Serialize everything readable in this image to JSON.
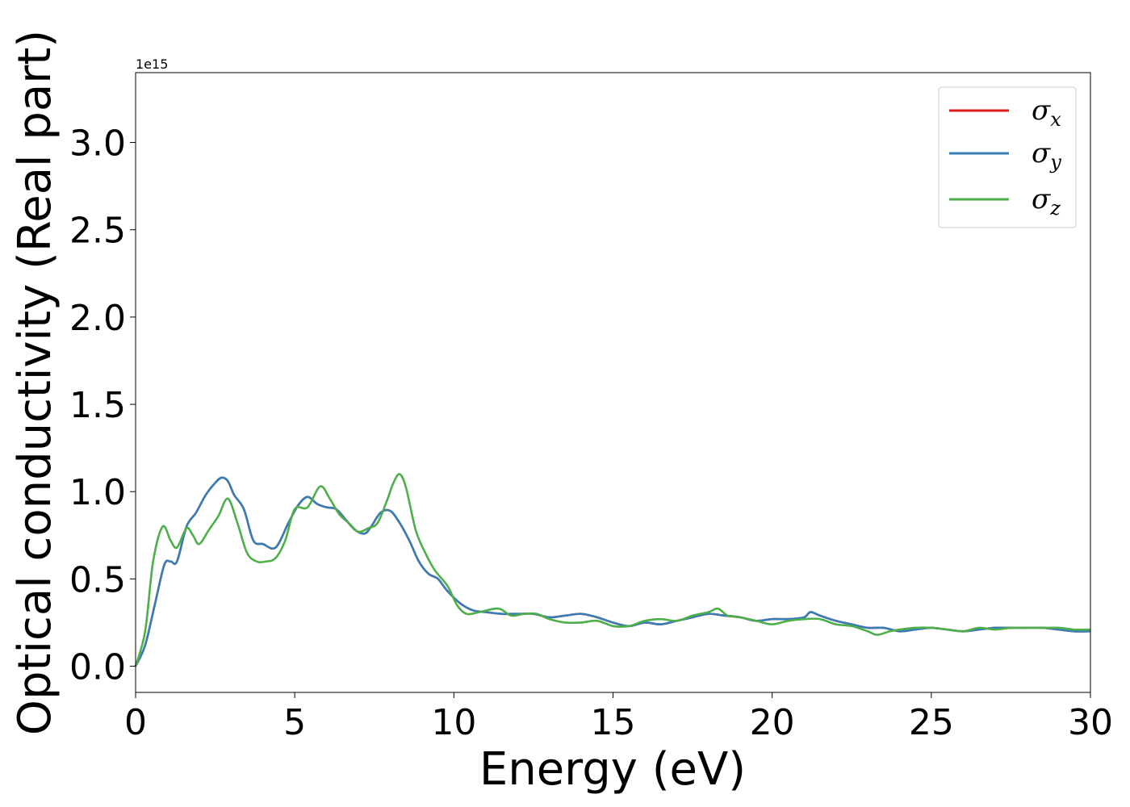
{
  "chart_data": {
    "type": "line",
    "xlabel": "Energy (eV)",
    "ylabel": "Optical conductivity (Real part)",
    "y_offset_label": "1e15",
    "xlim": [
      0,
      30
    ],
    "ylim": [
      -0.15,
      3.4
    ],
    "x_ticks": [
      0,
      5,
      10,
      15,
      20,
      25,
      30
    ],
    "x_tick_labels": [
      "0",
      "5",
      "10",
      "15",
      "20",
      "25",
      "30"
    ],
    "y_ticks": [
      0.0,
      0.5,
      1.0,
      1.5,
      2.0,
      2.5,
      3.0
    ],
    "y_tick_labels": [
      "0.0",
      "0.5",
      "1.0",
      "1.5",
      "2.0",
      "2.5",
      "3.0"
    ],
    "grid": false,
    "legend_position": "top-right",
    "colors": {
      "sigma_x": "#e41a1c",
      "sigma_y": "#377eb8",
      "sigma_z": "#4daf4a"
    },
    "series": [
      {
        "name": "σx",
        "legend_symbol": "σ",
        "legend_sub": "x",
        "x": [
          0,
          0.3,
          0.6,
          0.9,
          1.1,
          1.3,
          1.6,
          1.9,
          2.2,
          2.5,
          2.7,
          2.9,
          3.1,
          3.4,
          3.7,
          4.0,
          4.4,
          4.8,
          5.1,
          5.4,
          5.7,
          6.0,
          6.3,
          6.6,
          6.9,
          7.2,
          7.4,
          7.7,
          8.0,
          8.3,
          8.6,
          8.9,
          9.2,
          9.5,
          9.8,
          10.2,
          10.6,
          11.0,
          11.5,
          12.0,
          12.5,
          13.0,
          13.5,
          14.0,
          14.5,
          15.0,
          15.5,
          16.0,
          16.5,
          17.0,
          17.5,
          18.0,
          18.5,
          19.0,
          19.5,
          20.0,
          20.5,
          21.0,
          21.2,
          21.5,
          22.0,
          22.5,
          23.0,
          23.5,
          24.0,
          24.5,
          25.0,
          25.5,
          26.0,
          26.5,
          27.0,
          27.5,
          28.0,
          28.5,
          29.0,
          29.5,
          30.0
        ],
        "values": [
          0.0,
          0.12,
          0.35,
          0.58,
          0.6,
          0.6,
          0.8,
          0.88,
          0.98,
          1.05,
          1.08,
          1.06,
          0.98,
          0.9,
          0.72,
          0.7,
          0.68,
          0.82,
          0.92,
          0.97,
          0.93,
          0.91,
          0.9,
          0.84,
          0.78,
          0.76,
          0.8,
          0.88,
          0.89,
          0.82,
          0.72,
          0.6,
          0.53,
          0.5,
          0.43,
          0.36,
          0.32,
          0.31,
          0.3,
          0.3,
          0.3,
          0.28,
          0.29,
          0.3,
          0.28,
          0.25,
          0.23,
          0.25,
          0.24,
          0.26,
          0.28,
          0.3,
          0.29,
          0.28,
          0.26,
          0.27,
          0.27,
          0.28,
          0.31,
          0.29,
          0.26,
          0.24,
          0.22,
          0.22,
          0.2,
          0.21,
          0.22,
          0.21,
          0.2,
          0.21,
          0.22,
          0.22,
          0.22,
          0.22,
          0.21,
          0.2,
          0.2
        ]
      },
      {
        "name": "σy",
        "legend_symbol": "σ",
        "legend_sub": "y",
        "x": [
          0,
          0.3,
          0.6,
          0.9,
          1.1,
          1.3,
          1.6,
          1.9,
          2.2,
          2.5,
          2.7,
          2.9,
          3.1,
          3.4,
          3.7,
          4.0,
          4.4,
          4.8,
          5.1,
          5.4,
          5.7,
          6.0,
          6.3,
          6.6,
          6.9,
          7.2,
          7.4,
          7.7,
          8.0,
          8.3,
          8.6,
          8.9,
          9.2,
          9.5,
          9.8,
          10.2,
          10.6,
          11.0,
          11.5,
          12.0,
          12.5,
          13.0,
          13.5,
          14.0,
          14.5,
          15.0,
          15.5,
          16.0,
          16.5,
          17.0,
          17.5,
          18.0,
          18.5,
          19.0,
          19.5,
          20.0,
          20.5,
          21.0,
          21.2,
          21.5,
          22.0,
          22.5,
          23.0,
          23.5,
          24.0,
          24.5,
          25.0,
          25.5,
          26.0,
          26.5,
          27.0,
          27.5,
          28.0,
          28.5,
          29.0,
          29.5,
          30.0
        ],
        "values": [
          0.0,
          0.12,
          0.35,
          0.58,
          0.6,
          0.6,
          0.8,
          0.88,
          0.98,
          1.05,
          1.08,
          1.06,
          0.98,
          0.9,
          0.72,
          0.7,
          0.68,
          0.82,
          0.92,
          0.97,
          0.93,
          0.91,
          0.9,
          0.84,
          0.78,
          0.76,
          0.8,
          0.88,
          0.89,
          0.82,
          0.72,
          0.6,
          0.53,
          0.5,
          0.43,
          0.36,
          0.32,
          0.31,
          0.3,
          0.3,
          0.3,
          0.28,
          0.29,
          0.3,
          0.28,
          0.25,
          0.23,
          0.25,
          0.24,
          0.26,
          0.28,
          0.3,
          0.29,
          0.28,
          0.26,
          0.27,
          0.27,
          0.28,
          0.31,
          0.29,
          0.26,
          0.24,
          0.22,
          0.22,
          0.2,
          0.21,
          0.22,
          0.21,
          0.2,
          0.21,
          0.22,
          0.22,
          0.22,
          0.22,
          0.21,
          0.2,
          0.2
        ]
      },
      {
        "name": "σz",
        "legend_symbol": "σ",
        "legend_sub": "z",
        "x": [
          0,
          0.3,
          0.55,
          0.85,
          1.1,
          1.3,
          1.6,
          1.8,
          2.0,
          2.3,
          2.6,
          2.9,
          3.2,
          3.5,
          3.8,
          4.1,
          4.4,
          4.7,
          5.0,
          5.4,
          5.8,
          6.1,
          6.4,
          6.7,
          7.0,
          7.3,
          7.6,
          7.9,
          8.1,
          8.3,
          8.5,
          8.8,
          9.1,
          9.4,
          9.8,
          10.1,
          10.4,
          10.8,
          11.4,
          11.8,
          12.2,
          12.6,
          13.0,
          13.5,
          14.0,
          14.5,
          15.0,
          15.5,
          16.0,
          16.5,
          17.0,
          17.5,
          18.0,
          18.3,
          18.6,
          19.0,
          19.5,
          20.0,
          20.5,
          21.0,
          21.5,
          22.0,
          22.5,
          23.0,
          23.3,
          23.7,
          24.0,
          24.5,
          25.0,
          25.5,
          26.0,
          26.5,
          27.0,
          27.5,
          28.0,
          28.5,
          29.0,
          29.5,
          30.0
        ],
        "values": [
          0.0,
          0.2,
          0.6,
          0.8,
          0.72,
          0.68,
          0.79,
          0.75,
          0.7,
          0.78,
          0.86,
          0.96,
          0.82,
          0.65,
          0.6,
          0.6,
          0.62,
          0.72,
          0.9,
          0.91,
          1.03,
          0.96,
          0.87,
          0.82,
          0.77,
          0.79,
          0.82,
          0.95,
          1.05,
          1.1,
          1.02,
          0.78,
          0.65,
          0.55,
          0.46,
          0.35,
          0.3,
          0.31,
          0.33,
          0.29,
          0.3,
          0.3,
          0.27,
          0.25,
          0.25,
          0.26,
          0.23,
          0.23,
          0.26,
          0.27,
          0.26,
          0.29,
          0.31,
          0.33,
          0.29,
          0.28,
          0.26,
          0.24,
          0.26,
          0.27,
          0.27,
          0.24,
          0.23,
          0.2,
          0.18,
          0.2,
          0.21,
          0.22,
          0.22,
          0.21,
          0.2,
          0.22,
          0.21,
          0.22,
          0.22,
          0.22,
          0.22,
          0.21,
          0.21
        ]
      }
    ]
  }
}
